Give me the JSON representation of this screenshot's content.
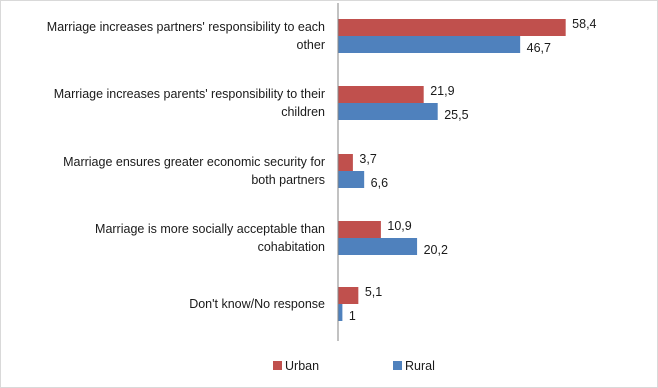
{
  "chart_data": {
    "type": "bar",
    "orientation": "horizontal",
    "categories": [
      [
        "Marriage increases partners' responsibility to each",
        "other"
      ],
      [
        "Marriage increases parents' responsibility to their",
        "children"
      ],
      [
        "Marriage ensures greater economic security for",
        "both partners"
      ],
      [
        "Marriage is more socially acceptable than",
        "cohabitation"
      ],
      [
        "Don't know/No response"
      ]
    ],
    "series": [
      {
        "name": "Urban",
        "color": "#c0504d",
        "values": [
          58.4,
          21.9,
          3.7,
          10.9,
          5.1
        ],
        "labels": [
          "58,4",
          "21,9",
          "3,7",
          "10,9",
          "5,1"
        ]
      },
      {
        "name": "Rural",
        "color": "#4f81bd",
        "values": [
          46.7,
          25.5,
          6.6,
          20.2,
          1
        ],
        "labels": [
          "46,7",
          "25,5",
          "6,6",
          "20,2",
          "1"
        ]
      }
    ],
    "xlim": [
      0,
      65
    ],
    "grid": false,
    "legend_position": "bottom"
  }
}
